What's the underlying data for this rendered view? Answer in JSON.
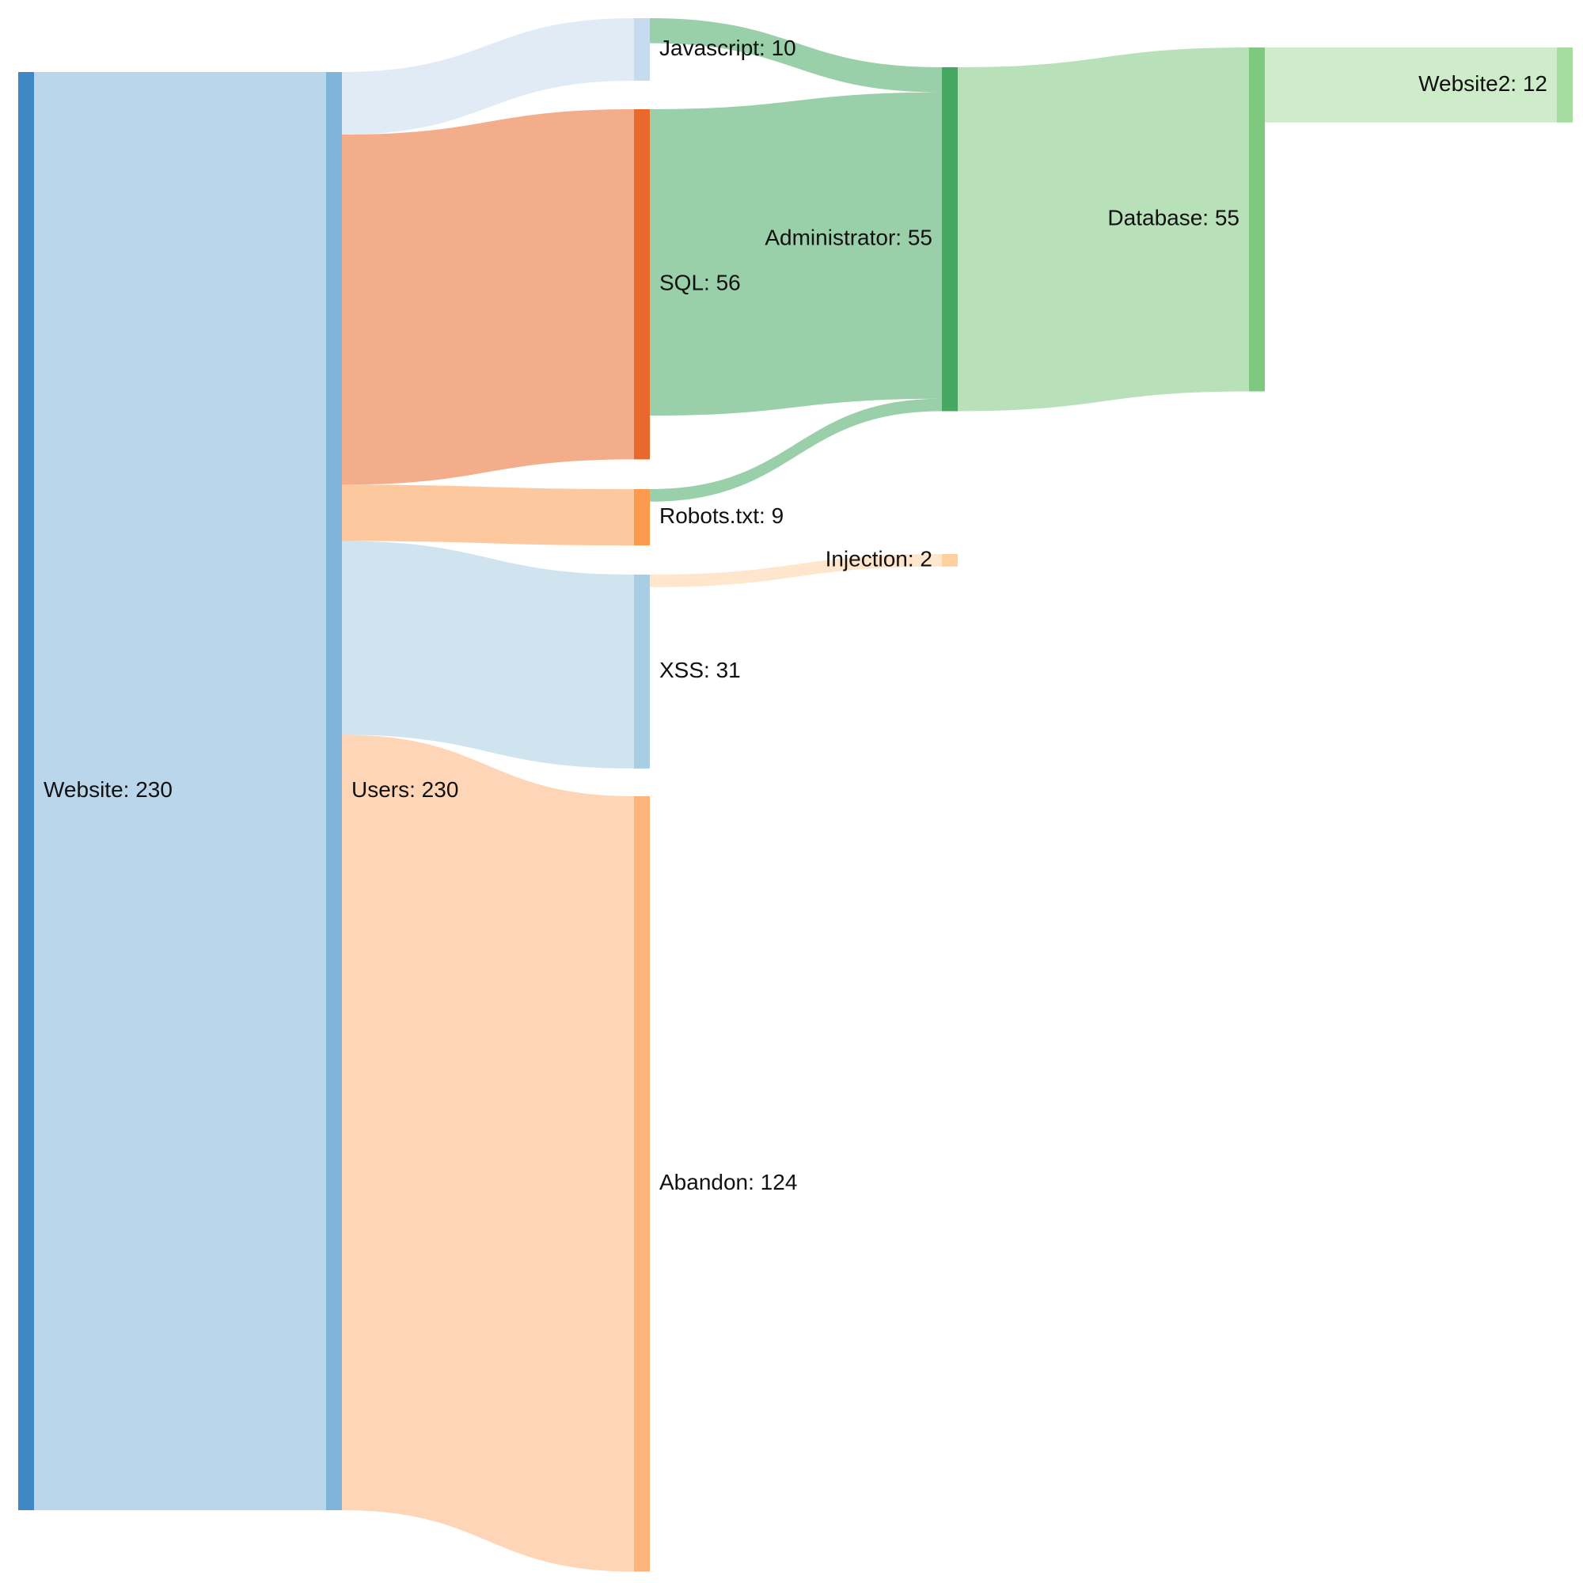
{
  "chart_data": {
    "type": "sankey",
    "nodes": [
      {
        "label": "Website: 230",
        "value": 230,
        "color": "#3f88c5"
      },
      {
        "label": "Users: 230",
        "value": 230,
        "color": "#7fb5da"
      },
      {
        "label": "Javascript: 10",
        "value": 10,
        "color": "#c6dbef"
      },
      {
        "label": "SQL: 56",
        "value": 56,
        "color": "#e9692c"
      },
      {
        "label": "Robots.txt: 9",
        "value": 9,
        "color": "#fd9a4e"
      },
      {
        "label": "XSS: 31",
        "value": 31,
        "color": "#a9cde3"
      },
      {
        "label": "Abandon: 124",
        "value": 124,
        "color": "#fdb37a"
      },
      {
        "label": "Administrator: 55",
        "value": 55,
        "color": "#45a862"
      },
      {
        "label": "Injection: 2",
        "value": 2,
        "color": "#fdd0a2"
      },
      {
        "label": "Database: 55",
        "value": 55,
        "color": "#7fc87f"
      },
      {
        "label": "Website2: 12",
        "value": 12,
        "color": "#a6dc9f"
      }
    ],
    "links": [
      {
        "source": 0,
        "target": 1,
        "value": 230
      },
      {
        "source": 1,
        "target": 2,
        "value": 10
      },
      {
        "source": 1,
        "target": 3,
        "value": 56
      },
      {
        "source": 1,
        "target": 4,
        "value": 9
      },
      {
        "source": 1,
        "target": 5,
        "value": 31
      },
      {
        "source": 1,
        "target": 6,
        "value": 124
      },
      {
        "source": 2,
        "target": 7,
        "value": 4
      },
      {
        "source": 3,
        "target": 7,
        "value": 49
      },
      {
        "source": 4,
        "target": 7,
        "value": 2
      },
      {
        "source": 5,
        "target": 8,
        "value": 2
      },
      {
        "source": 7,
        "target": 9,
        "value": 55
      },
      {
        "source": 9,
        "target": 10,
        "value": 12
      }
    ]
  }
}
